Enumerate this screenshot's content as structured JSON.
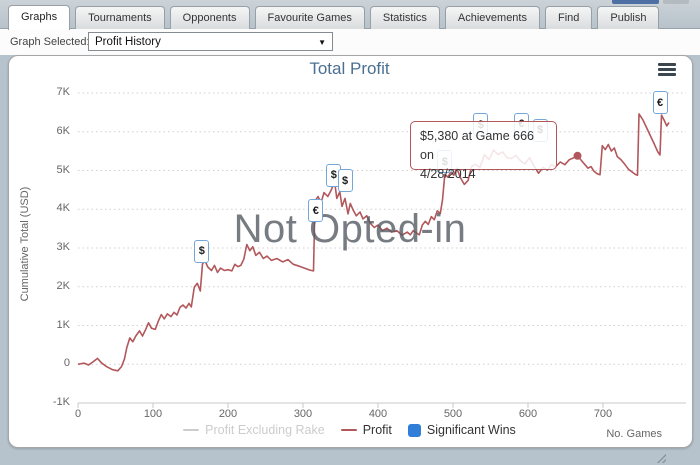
{
  "tabs": [
    {
      "label": "Graphs",
      "active": true
    },
    {
      "label": "Tournaments",
      "active": false
    },
    {
      "label": "Opponents",
      "active": false
    },
    {
      "label": "Favourite Games",
      "active": false
    },
    {
      "label": "Statistics",
      "active": false
    },
    {
      "label": "Achievements",
      "active": false
    },
    {
      "label": "Find",
      "active": false
    },
    {
      "label": "Publish",
      "active": false
    }
  ],
  "controls": {
    "graph_selected_label": "Graph Selected:",
    "graph_selected_value": "Profit History",
    "dropdown_arrow": "▼"
  },
  "chart": {
    "title": "Total Profit",
    "watermark": "Not Opted-in",
    "menu_icon": "hamburger-menu",
    "tooltip": {
      "line1": "$5,380 at Game 666 on",
      "line2": "4/28/2014"
    },
    "colors": {
      "profit_line": "#b2575b",
      "profit_excluding_rake": "#cccccc",
      "significant_wins": "#2f7ed8",
      "marker_border": "#74a7d8",
      "title": "#4c7092",
      "gridline": "#cfcfcf",
      "axis": "#c8c8c8"
    }
  },
  "chart_data": {
    "type": "line",
    "title": "Total Profit",
    "xlabel": "No. Games",
    "ylabel": "Cumulative Total (USD)",
    "x_ticks": [
      0,
      100,
      200,
      300,
      400,
      500,
      600,
      700
    ],
    "y_ticks": [
      {
        "label": "7K",
        "value": 7000
      },
      {
        "label": "6K",
        "value": 6000
      },
      {
        "label": "5K",
        "value": 5000
      },
      {
        "label": "4K",
        "value": 4000
      },
      {
        "label": "3K",
        "value": 3000
      },
      {
        "label": "2K",
        "value": 2000
      },
      {
        "label": "1K",
        "value": 1000
      },
      {
        "label": "0",
        "value": 0
      },
      {
        "label": "-1K",
        "value": -1000
      }
    ],
    "xlim": [
      0,
      810
    ],
    "ylim": [
      -1000,
      7000
    ],
    "grid": "dotted horizontal",
    "legend_position": "bottom center",
    "legend": [
      {
        "label": "Profit Excluding Rake",
        "swatch": "line",
        "color": "#cccccc",
        "disabled": true
      },
      {
        "label": "Profit",
        "swatch": "line",
        "color": "#b2575b",
        "disabled": false
      },
      {
        "label": "Significant Wins",
        "swatch": "square",
        "color": "#2f7ed8",
        "disabled": false
      }
    ],
    "highlight_point": {
      "game": 666,
      "value": 5380,
      "date": "4/28/2014"
    },
    "significant_wins": [
      {
        "game": 165,
        "value": 2590,
        "symbol": "$",
        "lift": 0
      },
      {
        "game": 317,
        "value": 4210,
        "symbol": "€",
        "lift": -22
      },
      {
        "game": 341,
        "value": 4730,
        "symbol": "$",
        "lift": -7
      },
      {
        "game": 356,
        "value": 4280,
        "symbol": "$",
        "lift": 5
      },
      {
        "game": 489,
        "value": 4900,
        "symbol": "$",
        "lift": 0
      },
      {
        "game": 537,
        "value": 5080,
        "symbol": "$",
        "lift": 30
      },
      {
        "game": 591,
        "value": 5380,
        "symbol": "€",
        "lift": 19
      },
      {
        "game": 616,
        "value": 4920,
        "symbol": "$",
        "lift": 31
      },
      {
        "game": 776,
        "value": 6430,
        "symbol": "€",
        "lift": 0
      }
    ],
    "series": [
      {
        "name": "Profit",
        "color": "#b2575b",
        "points": [
          [
            0,
            0
          ],
          [
            8,
            30
          ],
          [
            14,
            -20
          ],
          [
            20,
            60
          ],
          [
            26,
            150
          ],
          [
            31,
            40
          ],
          [
            38,
            -60
          ],
          [
            46,
            -140
          ],
          [
            53,
            -170
          ],
          [
            58,
            -60
          ],
          [
            62,
            140
          ],
          [
            65,
            430
          ],
          [
            69,
            680
          ],
          [
            73,
            580
          ],
          [
            77,
            730
          ],
          [
            82,
            860
          ],
          [
            86,
            730
          ],
          [
            90,
            890
          ],
          [
            94,
            1070
          ],
          [
            98,
            930
          ],
          [
            103,
            900
          ],
          [
            107,
            1110
          ],
          [
            111,
            1280
          ],
          [
            115,
            1170
          ],
          [
            119,
            1300
          ],
          [
            124,
            1230
          ],
          [
            128,
            1340
          ],
          [
            132,
            1270
          ],
          [
            136,
            1470
          ],
          [
            140,
            1530
          ],
          [
            144,
            1450
          ],
          [
            148,
            1570
          ],
          [
            151,
            1480
          ],
          [
            155,
            1990
          ],
          [
            159,
            2090
          ],
          [
            163,
            1890
          ],
          [
            166,
            2590
          ],
          [
            169,
            2680
          ],
          [
            173,
            2510
          ],
          [
            178,
            2420
          ],
          [
            182,
            2550
          ],
          [
            186,
            2370
          ],
          [
            190,
            2480
          ],
          [
            195,
            2420
          ],
          [
            200,
            2440
          ],
          [
            205,
            2410
          ],
          [
            209,
            2580
          ],
          [
            213,
            2520
          ],
          [
            217,
            2550
          ],
          [
            221,
            2710
          ],
          [
            225,
            3090
          ],
          [
            229,
            2930
          ],
          [
            233,
            3030
          ],
          [
            237,
            2810
          ],
          [
            242,
            2890
          ],
          [
            247,
            2730
          ],
          [
            252,
            2790
          ],
          [
            258,
            2680
          ],
          [
            265,
            2730
          ],
          [
            273,
            2640
          ],
          [
            280,
            2700
          ],
          [
            287,
            2580
          ],
          [
            295,
            2530
          ],
          [
            302,
            2480
          ],
          [
            309,
            2430
          ],
          [
            314,
            2410
          ],
          [
            316,
            4210
          ],
          [
            320,
            4330
          ],
          [
            324,
            4170
          ],
          [
            328,
            4430
          ],
          [
            333,
            4330
          ],
          [
            338,
            4510
          ],
          [
            342,
            4730
          ],
          [
            345,
            4280
          ],
          [
            349,
            4450
          ],
          [
            352,
            4070
          ],
          [
            356,
            4280
          ],
          [
            360,
            3880
          ],
          [
            363,
            4150
          ],
          [
            367,
            3970
          ],
          [
            371,
            3830
          ],
          [
            376,
            3930
          ],
          [
            380,
            3750
          ],
          [
            385,
            3830
          ],
          [
            390,
            3630
          ],
          [
            395,
            3530
          ],
          [
            400,
            3590
          ],
          [
            406,
            3450
          ],
          [
            412,
            3510
          ],
          [
            418,
            3410
          ],
          [
            425,
            3450
          ],
          [
            432,
            3330
          ],
          [
            439,
            3410
          ],
          [
            443,
            3340
          ],
          [
            447,
            3450
          ],
          [
            451,
            3390
          ],
          [
            455,
            3340
          ],
          [
            459,
            3590
          ],
          [
            463,
            3690
          ],
          [
            467,
            3610
          ],
          [
            471,
            3810
          ],
          [
            475,
            3730
          ],
          [
            479,
            3960
          ],
          [
            483,
            3890
          ],
          [
            486,
            4240
          ],
          [
            489,
            4900
          ],
          [
            493,
            4830
          ],
          [
            497,
            4960
          ],
          [
            501,
            4880
          ],
          [
            505,
            5060
          ],
          [
            510,
            4810
          ],
          [
            515,
            4640
          ],
          [
            520,
            4740
          ],
          [
            525,
            5110
          ],
          [
            530,
            5160
          ],
          [
            536,
            5080
          ],
          [
            542,
            5410
          ],
          [
            548,
            5280
          ],
          [
            554,
            5530
          ],
          [
            560,
            5410
          ],
          [
            566,
            5480
          ],
          [
            572,
            5330
          ],
          [
            578,
            5310
          ],
          [
            584,
            5390
          ],
          [
            590,
            5250
          ],
          [
            596,
            5170
          ],
          [
            602,
            5330
          ],
          [
            608,
            5120
          ],
          [
            614,
            4930
          ],
          [
            620,
            5080
          ],
          [
            626,
            5010
          ],
          [
            631,
            5150
          ],
          [
            637,
            5100
          ],
          [
            643,
            5220
          ],
          [
            649,
            5150
          ],
          [
            655,
            5280
          ],
          [
            660,
            5320
          ],
          [
            666,
            5380
          ],
          [
            671,
            5260
          ],
          [
            676,
            5150
          ],
          [
            680,
            5060
          ],
          [
            684,
            5100
          ],
          [
            688,
            4980
          ],
          [
            692,
            4920
          ],
          [
            696,
            4890
          ],
          [
            699,
            5640
          ],
          [
            703,
            5540
          ],
          [
            707,
            5670
          ],
          [
            711,
            5500
          ],
          [
            715,
            5580
          ],
          [
            719,
            5360
          ],
          [
            724,
            5280
          ],
          [
            729,
            5160
          ],
          [
            734,
            5030
          ],
          [
            739,
            4960
          ],
          [
            743,
            4900
          ],
          [
            746,
            4880
          ],
          [
            748,
            6460
          ],
          [
            753,
            6310
          ],
          [
            758,
            6110
          ],
          [
            763,
            5900
          ],
          [
            768,
            5700
          ],
          [
            773,
            5480
          ],
          [
            776,
            5400
          ],
          [
            778,
            6430
          ],
          [
            782,
            6280
          ],
          [
            785,
            6150
          ],
          [
            788,
            6240
          ]
        ]
      }
    ]
  }
}
